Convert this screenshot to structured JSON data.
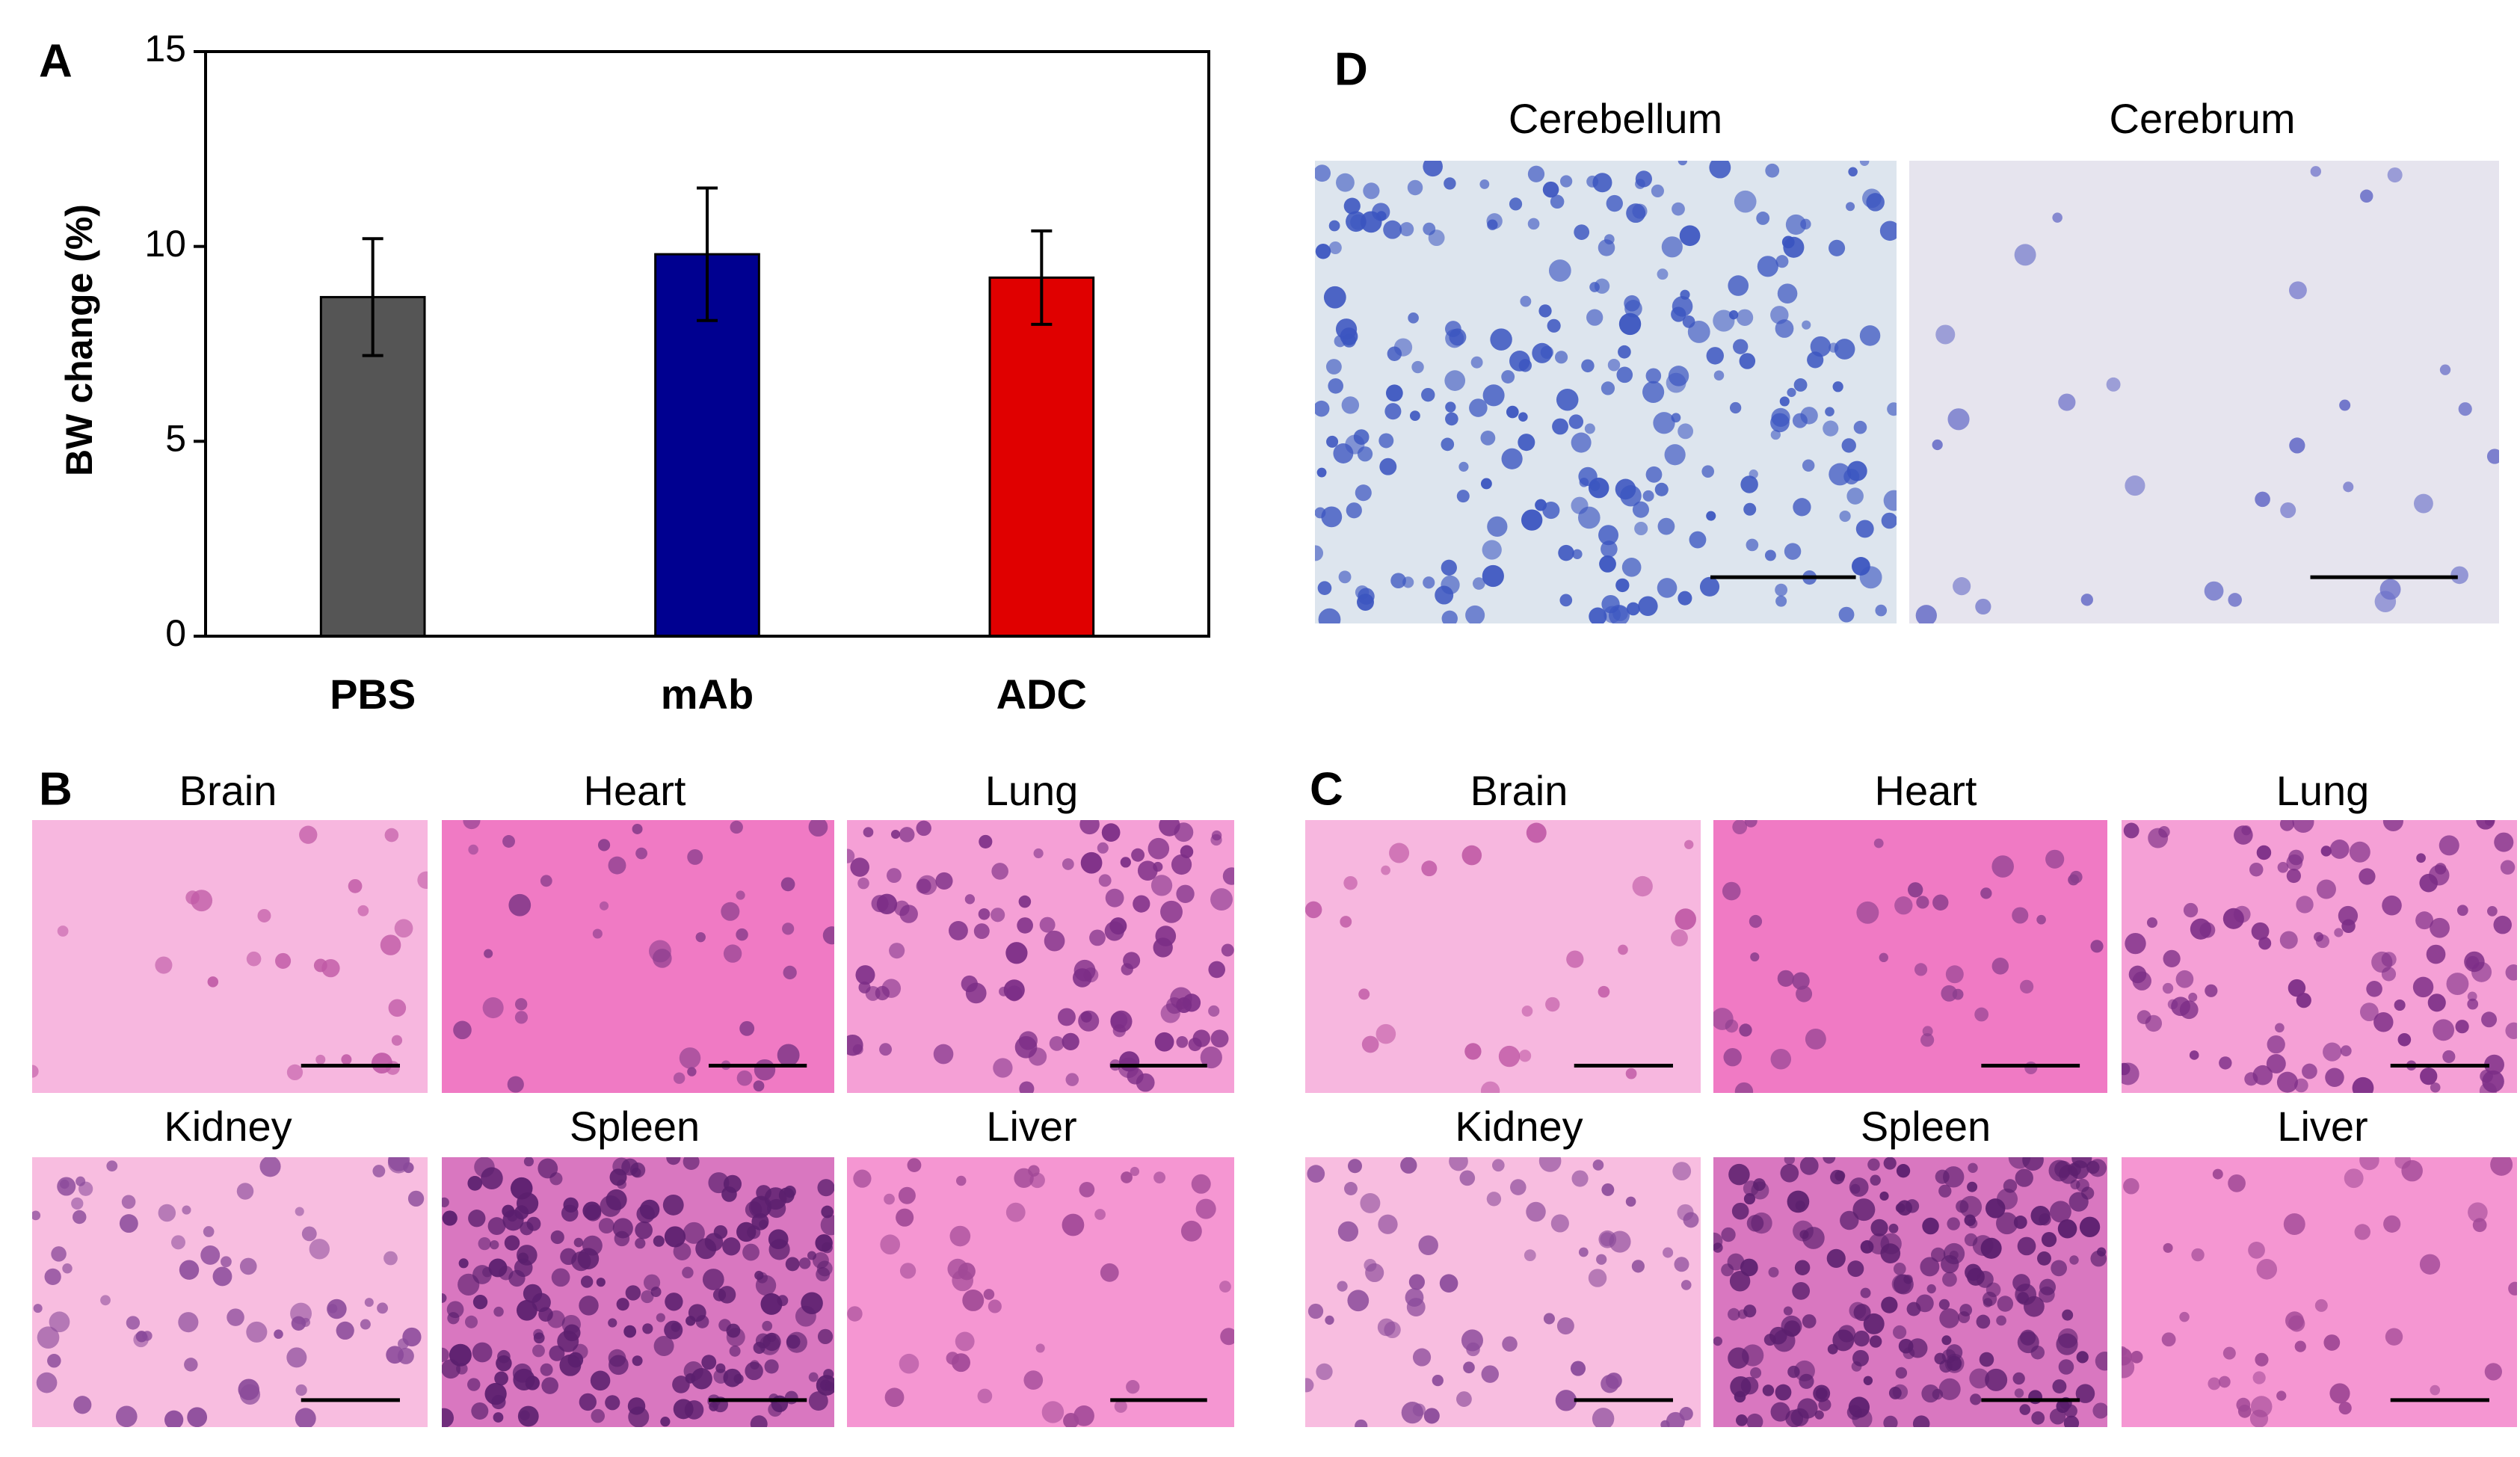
{
  "chart_data": {
    "type": "bar",
    "ylabel": "BW change (%)",
    "categories": [
      "PBS",
      "mAb",
      "ADC"
    ],
    "values": [
      8.7,
      9.8,
      9.2
    ],
    "errors": [
      1.5,
      1.7,
      1.2
    ],
    "colors": [
      "#555555",
      "#000090",
      "#e00000"
    ],
    "ylim": [
      0,
      15
    ],
    "yticks": [
      0,
      5,
      10,
      15
    ]
  },
  "panel_labels": [
    "A",
    "B",
    "C",
    "D"
  ],
  "panel_b": {
    "titles": [
      "Brain",
      "Heart",
      "Lung",
      "Kidney",
      "Spleen",
      "Liver"
    ]
  },
  "panel_c": {
    "titles": [
      "Brain",
      "Heart",
      "Lung",
      "Kidney",
      "Spleen",
      "Liver"
    ]
  },
  "panel_d": {
    "titles": [
      "Cerebellum",
      "Cerebrum"
    ]
  }
}
